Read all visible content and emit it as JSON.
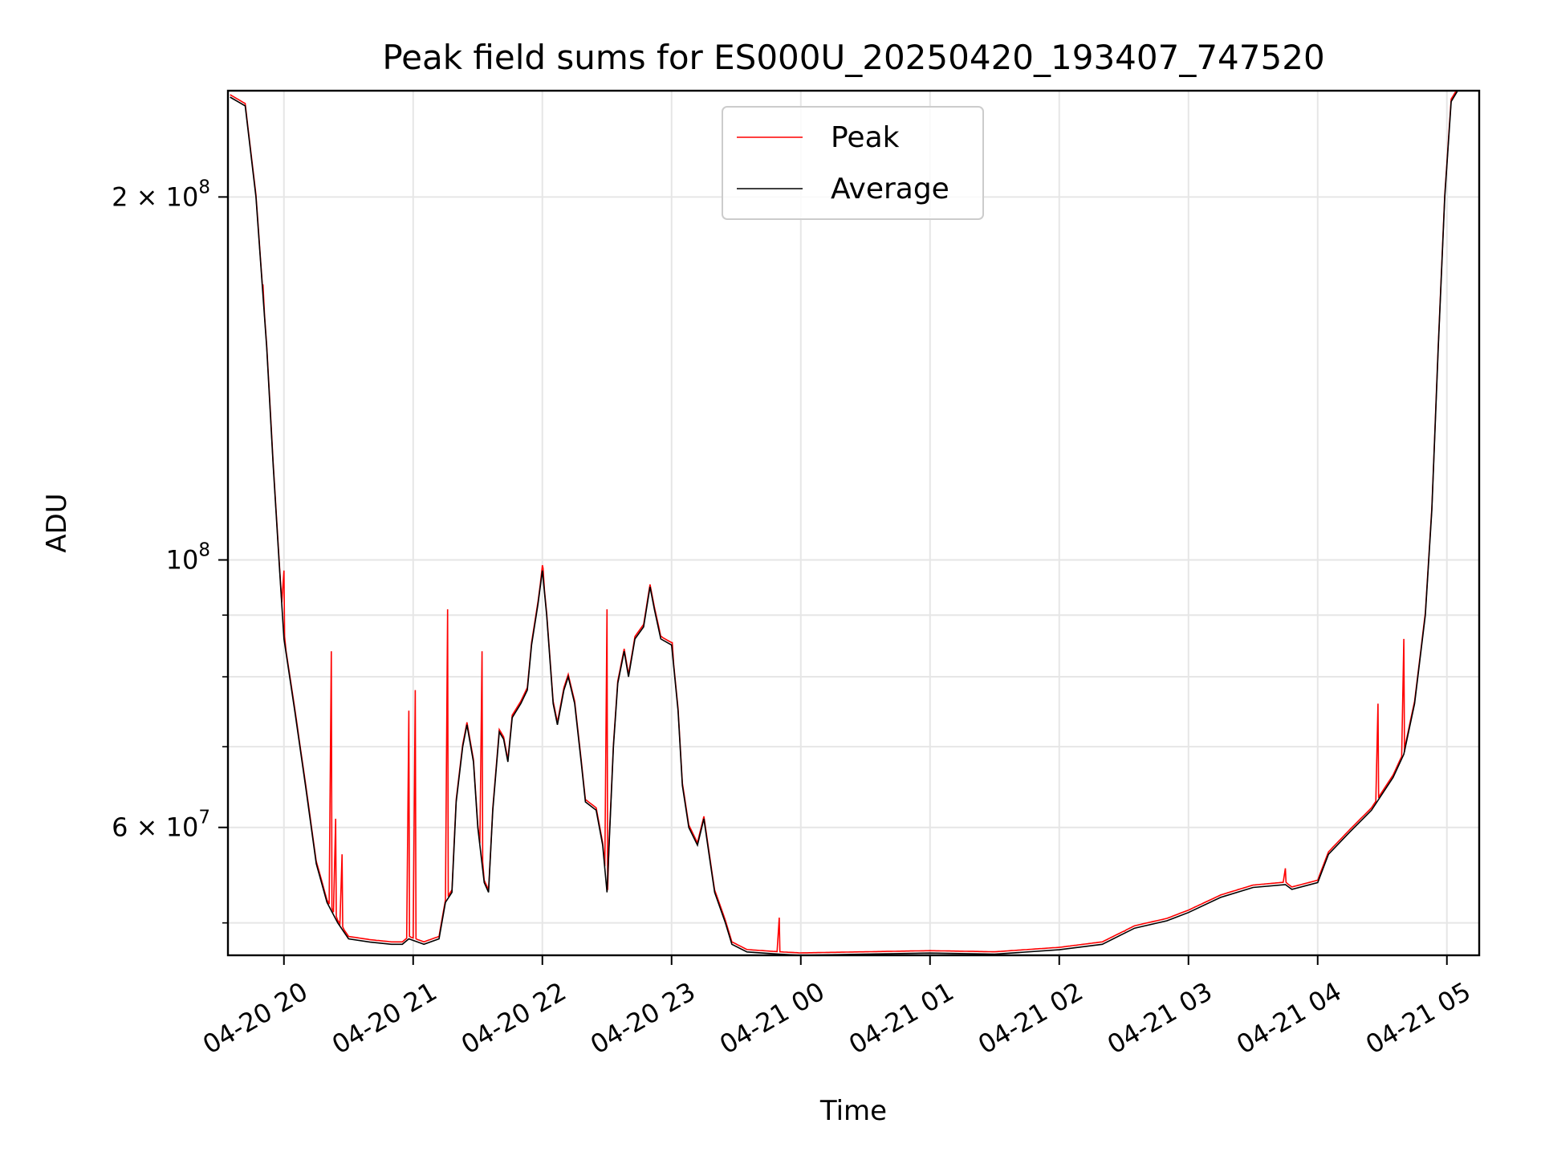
{
  "chart_data": {
    "type": "line",
    "title": "Peak field sums for ES000U_20250420_193407_747520",
    "xlabel": "Time",
    "ylabel": "ADU",
    "y_scale": "log",
    "ylim": [
      47000000,
      245000000
    ],
    "xlim": [
      "2025-04-20 19:34",
      "2025-04-21 05:15"
    ],
    "grid": true,
    "legend_position": "upper center",
    "x_ticks": [
      {
        "t": "2025-04-20 20:00",
        "label": "04-20 20"
      },
      {
        "t": "2025-04-20 21:00",
        "label": "04-20 21"
      },
      {
        "t": "2025-04-20 22:00",
        "label": "04-20 22"
      },
      {
        "t": "2025-04-20 23:00",
        "label": "04-20 23"
      },
      {
        "t": "2025-04-21 00:00",
        "label": "04-21 00"
      },
      {
        "t": "2025-04-21 01:00",
        "label": "04-21 01"
      },
      {
        "t": "2025-04-21 02:00",
        "label": "04-21 02"
      },
      {
        "t": "2025-04-21 03:00",
        "label": "04-21 03"
      },
      {
        "t": "2025-04-21 04:00",
        "label": "04-21 04"
      },
      {
        "t": "2025-04-21 05:00",
        "label": "04-21 05"
      }
    ],
    "y_major_ticks": [
      {
        "value": 60000000,
        "mant": "6",
        "exp": "7"
      },
      {
        "value": 100000000,
        "mant": "",
        "exp": "8"
      },
      {
        "value": 200000000,
        "mant": "2",
        "exp": "8"
      }
    ],
    "y_minor_ticks": [
      50000000,
      70000000,
      80000000,
      90000000
    ],
    "series": [
      {
        "name": "Average",
        "color": "#000000",
        "points": [
          [
            "2025-04-20 19:35",
            242000000
          ],
          [
            "2025-04-20 19:42",
            238000000
          ],
          [
            "2025-04-20 19:47",
            200000000
          ],
          [
            "2025-04-20 19:52",
            150000000
          ],
          [
            "2025-04-20 19:55",
            120000000
          ],
          [
            "2025-04-20 19:58",
            98000000
          ],
          [
            "2025-04-20 20:00",
            86000000
          ],
          [
            "2025-04-20 20:05",
            75000000
          ],
          [
            "2025-04-20 20:10",
            65000000
          ],
          [
            "2025-04-20 20:15",
            56000000
          ],
          [
            "2025-04-20 20:20",
            52000000
          ],
          [
            "2025-04-20 20:25",
            50000000
          ],
          [
            "2025-04-20 20:30",
            48500000
          ],
          [
            "2025-04-20 20:40",
            48200000
          ],
          [
            "2025-04-20 20:50",
            48000000
          ],
          [
            "2025-04-20 20:55",
            48000000
          ],
          [
            "2025-04-20 20:58",
            48500000
          ],
          [
            "2025-04-20 21:05",
            48000000
          ],
          [
            "2025-04-20 21:12",
            48500000
          ],
          [
            "2025-04-20 21:15",
            52000000
          ],
          [
            "2025-04-20 21:18",
            53000000
          ],
          [
            "2025-04-20 21:20",
            63000000
          ],
          [
            "2025-04-20 21:23",
            70000000
          ],
          [
            "2025-04-20 21:25",
            73000000
          ],
          [
            "2025-04-20 21:28",
            68000000
          ],
          [
            "2025-04-20 21:30",
            60000000
          ],
          [
            "2025-04-20 21:33",
            54000000
          ],
          [
            "2025-04-20 21:35",
            53000000
          ],
          [
            "2025-04-20 21:37",
            62000000
          ],
          [
            "2025-04-20 21:40",
            72000000
          ],
          [
            "2025-04-20 21:42",
            71000000
          ],
          [
            "2025-04-20 21:44",
            68000000
          ],
          [
            "2025-04-20 21:46",
            74000000
          ],
          [
            "2025-04-20 21:50",
            76000000
          ],
          [
            "2025-04-20 21:53",
            78000000
          ],
          [
            "2025-04-20 21:55",
            85000000
          ],
          [
            "2025-04-20 21:58",
            92000000
          ],
          [
            "2025-04-20 22:00",
            98000000
          ],
          [
            "2025-04-20 22:02",
            90000000
          ],
          [
            "2025-04-20 22:05",
            76000000
          ],
          [
            "2025-04-20 22:07",
            73000000
          ],
          [
            "2025-04-20 22:10",
            78000000
          ],
          [
            "2025-04-20 22:12",
            80000000
          ],
          [
            "2025-04-20 22:15",
            76000000
          ],
          [
            "2025-04-20 22:18",
            68000000
          ],
          [
            "2025-04-20 22:20",
            63000000
          ],
          [
            "2025-04-20 22:25",
            62000000
          ],
          [
            "2025-04-20 22:28",
            58000000
          ],
          [
            "2025-04-20 22:30",
            53000000
          ],
          [
            "2025-04-20 22:33",
            70000000
          ],
          [
            "2025-04-20 22:35",
            79000000
          ],
          [
            "2025-04-20 22:38",
            84000000
          ],
          [
            "2025-04-20 22:40",
            80000000
          ],
          [
            "2025-04-20 22:43",
            86000000
          ],
          [
            "2025-04-20 22:47",
            88000000
          ],
          [
            "2025-04-20 22:50",
            95000000
          ],
          [
            "2025-04-20 22:52",
            91000000
          ],
          [
            "2025-04-20 22:55",
            86000000
          ],
          [
            "2025-04-20 23:00",
            85000000
          ],
          [
            "2025-04-20 23:03",
            75000000
          ],
          [
            "2025-04-20 23:05",
            65000000
          ],
          [
            "2025-04-20 23:08",
            60000000
          ],
          [
            "2025-04-20 23:12",
            58000000
          ],
          [
            "2025-04-20 23:15",
            61000000
          ],
          [
            "2025-04-20 23:18",
            56000000
          ],
          [
            "2025-04-20 23:20",
            53000000
          ],
          [
            "2025-04-20 23:25",
            50000000
          ],
          [
            "2025-04-20 23:28",
            48000000
          ],
          [
            "2025-04-20 23:35",
            47300000
          ],
          [
            "2025-04-20 23:50",
            47100000
          ],
          [
            "2025-04-21 00:00",
            47000000
          ],
          [
            "2025-04-21 00:30",
            47100000
          ],
          [
            "2025-04-21 01:00",
            47200000
          ],
          [
            "2025-04-21 01:30",
            47100000
          ],
          [
            "2025-04-21 02:00",
            47500000
          ],
          [
            "2025-04-21 02:20",
            48000000
          ],
          [
            "2025-04-21 02:35",
            49500000
          ],
          [
            "2025-04-21 02:50",
            50200000
          ],
          [
            "2025-04-21 03:00",
            51000000
          ],
          [
            "2025-04-21 03:15",
            52500000
          ],
          [
            "2025-04-21 03:30",
            53500000
          ],
          [
            "2025-04-21 03:45",
            53800000
          ],
          [
            "2025-04-21 03:48",
            53300000
          ],
          [
            "2025-04-21 04:00",
            54000000
          ],
          [
            "2025-04-21 04:05",
            57000000
          ],
          [
            "2025-04-21 04:15",
            59500000
          ],
          [
            "2025-04-21 04:25",
            62000000
          ],
          [
            "2025-04-21 04:35",
            66000000
          ],
          [
            "2025-04-21 04:40",
            69000000
          ],
          [
            "2025-04-21 04:45",
            76000000
          ],
          [
            "2025-04-21 04:50",
            90000000
          ],
          [
            "2025-04-21 04:53",
            110000000
          ],
          [
            "2025-04-21 04:56",
            150000000
          ],
          [
            "2025-04-21 04:59",
            200000000
          ],
          [
            "2025-04-21 05:02",
            240000000
          ],
          [
            "2025-04-21 05:05",
            245000000
          ]
        ]
      },
      {
        "name": "Peak",
        "color": "#ff0000",
        "spikes": [
          [
            "2025-04-20 19:50",
            165000000
          ],
          [
            "2025-04-20 20:00",
            98000000
          ],
          [
            "2025-04-20 20:22",
            84000000
          ],
          [
            "2025-04-20 20:24",
            61000000
          ],
          [
            "2025-04-20 20:27",
            57000000
          ],
          [
            "2025-04-20 20:58",
            75000000
          ],
          [
            "2025-04-20 21:01",
            78000000
          ],
          [
            "2025-04-20 21:16",
            91000000
          ],
          [
            "2025-04-20 21:32",
            84000000
          ],
          [
            "2025-04-20 22:00",
            99000000
          ],
          [
            "2025-04-20 22:30",
            91000000
          ],
          [
            "2025-04-20 22:55",
            85000000
          ],
          [
            "2025-04-20 23:00",
            78000000
          ],
          [
            "2025-04-20 23:50",
            50500000
          ],
          [
            "2025-04-21 02:30",
            49000000
          ],
          [
            "2025-04-21 03:45",
            55500000
          ],
          [
            "2025-04-21 04:28",
            76000000
          ],
          [
            "2025-04-21 04:40",
            86000000
          ]
        ]
      }
    ]
  }
}
